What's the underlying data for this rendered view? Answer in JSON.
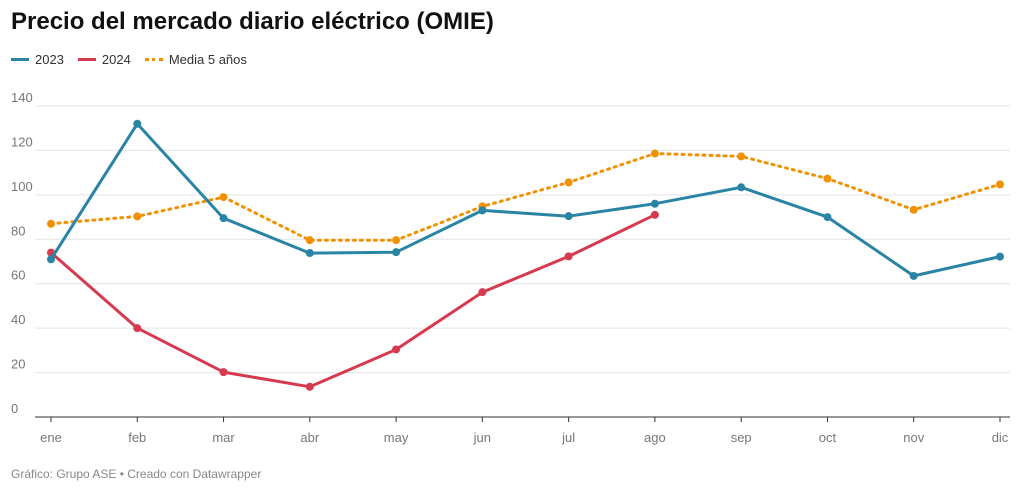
{
  "title": "Precio del mercado diario eléctrico (OMIE)",
  "footer": "Gráfico: Grupo ASE • Creado con Datawrapper",
  "chart_data": {
    "type": "line",
    "categories": [
      "ene",
      "feb",
      "mar",
      "abr",
      "may",
      "jun",
      "jul",
      "ago",
      "sep",
      "oct",
      "nov",
      "dic"
    ],
    "ylim": [
      0,
      140
    ],
    "yticks": [
      0,
      20,
      40,
      60,
      80,
      100,
      120,
      140
    ],
    "grid": true,
    "legend_position": "top-left",
    "series": [
      {
        "name": "2023",
        "color": "#2a84a6",
        "style": "solid",
        "values": [
          71,
          132,
          89.5,
          73.8,
          74.2,
          93,
          90.4,
          96,
          103.4,
          90,
          63.5,
          72.2
        ]
      },
      {
        "name": "2024",
        "color": "#d63a4f",
        "style": "solid",
        "values": [
          74,
          40,
          20.2,
          13.6,
          30.4,
          56.2,
          72.3,
          91,
          null,
          null,
          null,
          null
        ]
      },
      {
        "name": "Media 5 años",
        "color": "#f29100",
        "style": "dotted",
        "values": [
          87,
          90.3,
          99,
          79.6,
          79.6,
          94.8,
          105.6,
          118.6,
          117.3,
          107.3,
          93.3,
          104.7
        ]
      }
    ]
  }
}
